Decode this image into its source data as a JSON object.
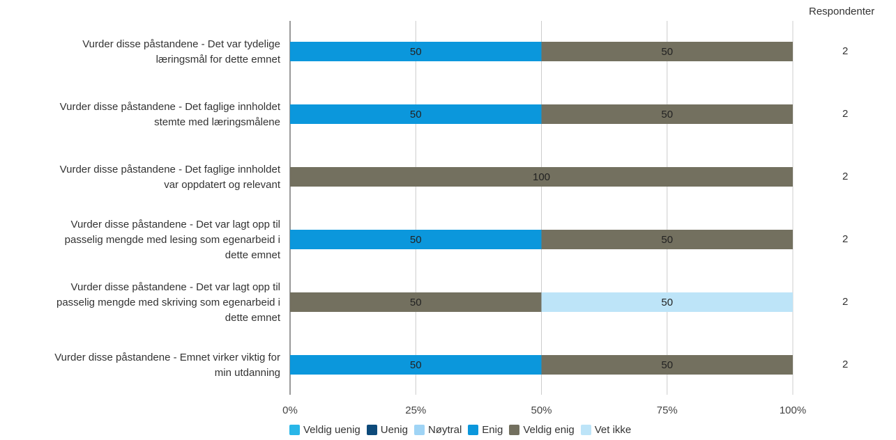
{
  "chart_data": {
    "type": "bar",
    "orientation": "horizontal",
    "stacked": "percent",
    "categories": [
      "Vurder disse påstandene  - Det var tydelige læringsmål for dette emnet",
      "Vurder disse påstandene  - Det faglige innholdet stemte med læringsmålene",
      "Vurder disse påstandene  - Det faglige innholdet var oppdatert og relevant",
      "Vurder disse påstandene  - Det var lagt opp til passelig mengde med lesing som egenarbeid i dette emnet",
      "Vurder disse påstandene  - Det var lagt opp til passelig mengde med skriving som egenarbeid i dette emnet",
      "Vurder disse påstandene  - Emnet virker viktig for min utdanning"
    ],
    "category_lines": [
      [
        "Vurder disse påstandene  - Det var tydelige",
        "læringsmål for dette emnet"
      ],
      [
        "Vurder disse påstandene  - Det faglige innholdet",
        "stemte med læringsmålene"
      ],
      [
        "Vurder disse påstandene  - Det faglige innholdet",
        "var oppdatert og relevant"
      ],
      [
        "Vurder disse påstandene  - Det var lagt opp til",
        "passelig mengde med lesing som egenarbeid i",
        "dette emnet"
      ],
      [
        "Vurder disse påstandene  - Det var lagt opp til",
        "passelig mengde med skriving som egenarbeid i",
        "dette emnet"
      ],
      [
        "Vurder disse påstandene  - Emnet virker viktig for",
        "min utdanning"
      ]
    ],
    "series": [
      {
        "name": "Veldig uenig",
        "color": "#29b6e8",
        "values": [
          0,
          0,
          0,
          0,
          0,
          0
        ]
      },
      {
        "name": "Uenig",
        "color": "#0d4a7a",
        "values": [
          0,
          0,
          0,
          0,
          0,
          0
        ]
      },
      {
        "name": "Nøytral",
        "color": "#9fd4f5",
        "values": [
          0,
          0,
          0,
          0,
          0,
          0
        ]
      },
      {
        "name": "Enig",
        "color": "#0b97dc",
        "values": [
          50,
          50,
          0,
          50,
          0,
          50
        ]
      },
      {
        "name": "Veldig enig",
        "color": "#73705f",
        "values": [
          50,
          50,
          100,
          50,
          50,
          50
        ]
      },
      {
        "name": "Vet ikke",
        "color": "#bde4f8",
        "values": [
          0,
          0,
          0,
          0,
          50,
          0
        ]
      }
    ],
    "xlim": [
      0,
      100
    ],
    "xticks": [
      "0%",
      "25%",
      "50%",
      "75%",
      "100%"
    ],
    "respondents_header": "Respondenter",
    "respondents": [
      2,
      2,
      2,
      2,
      2,
      2
    ],
    "legend_position": "bottom",
    "grid": true
  }
}
